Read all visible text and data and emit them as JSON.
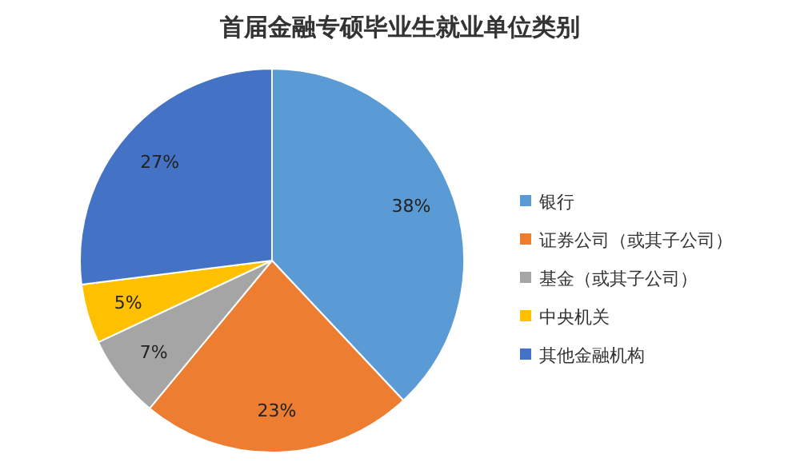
{
  "chart_data": {
    "type": "pie",
    "title": "首届金融专硕毕业生就业单位类别",
    "categories": [
      "银行",
      "证券公司（或其子公司）",
      "基金（或其子公司）",
      "中央机关",
      "其他金融机构"
    ],
    "values": [
      38,
      23,
      7,
      5,
      27
    ],
    "colors": [
      "#5b9bd5",
      "#ed7d31",
      "#a5a5a5",
      "#ffc000",
      "#4472c4"
    ],
    "value_labels": [
      "38%",
      "23%",
      "7%",
      "5%",
      "27%"
    ],
    "legend": "right"
  }
}
